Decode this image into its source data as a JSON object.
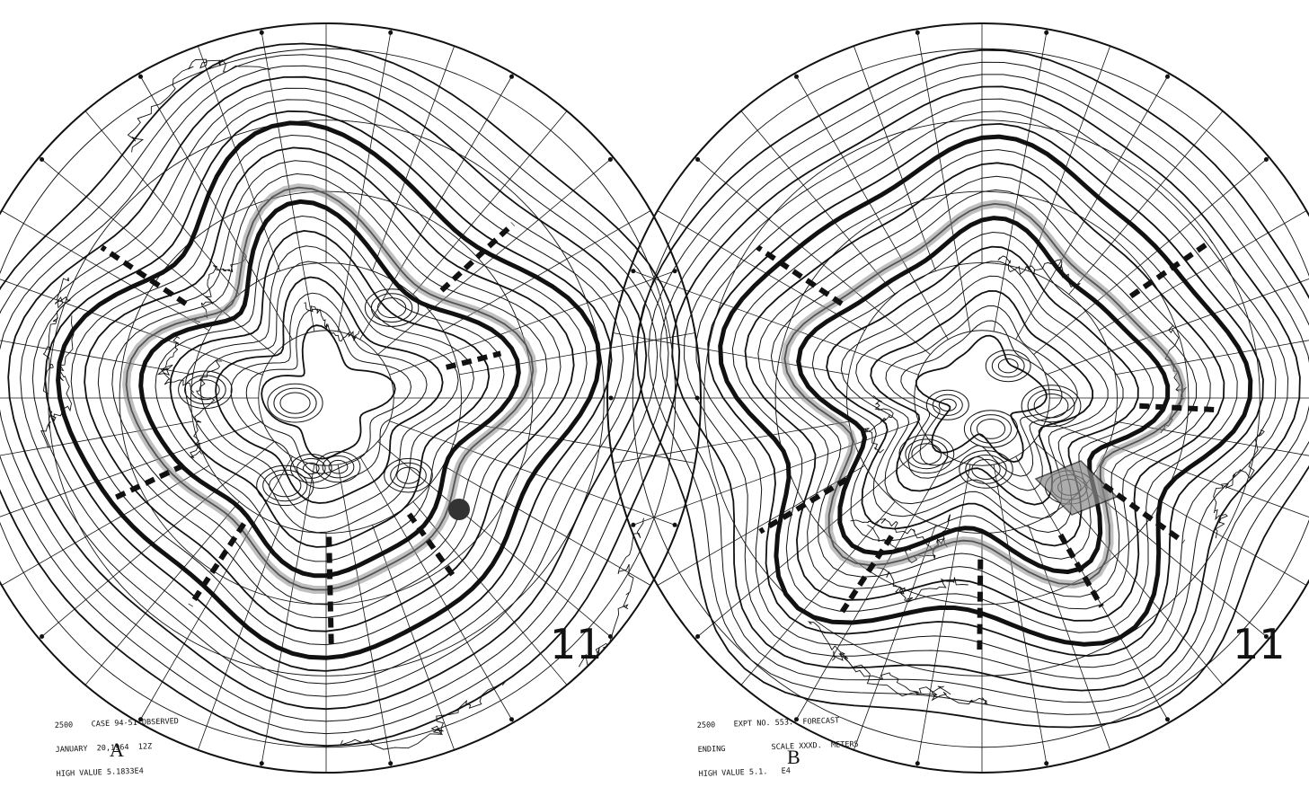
{
  "colors": {
    "ink": "#111111",
    "paper": "#ffffff",
    "shade": "#8a8a8a"
  },
  "maps": [
    {
      "id": "A",
      "label": "A",
      "number": "11",
      "caption": [
        "2500    CASE 94-51 OBSERVED",
        "JANUARY  20,1964  12Z",
        "HIGH VALUE 5.1833E4"
      ],
      "icons": [
        "polar-grid-icon",
        "coastline-icon",
        "contour-icon",
        "trough-axis-icon"
      ]
    },
    {
      "id": "B",
      "label": "B",
      "number": "11",
      "caption": [
        "2500    EXPT NO. 553.  FORECAST",
        "ENDING          SCALE XXXD.  METERS",
        "HIGH VALUE 5.1.   E4"
      ],
      "icons": [
        "polar-grid-icon",
        "coastline-icon",
        "contour-icon",
        "trough-axis-icon"
      ]
    }
  ]
}
